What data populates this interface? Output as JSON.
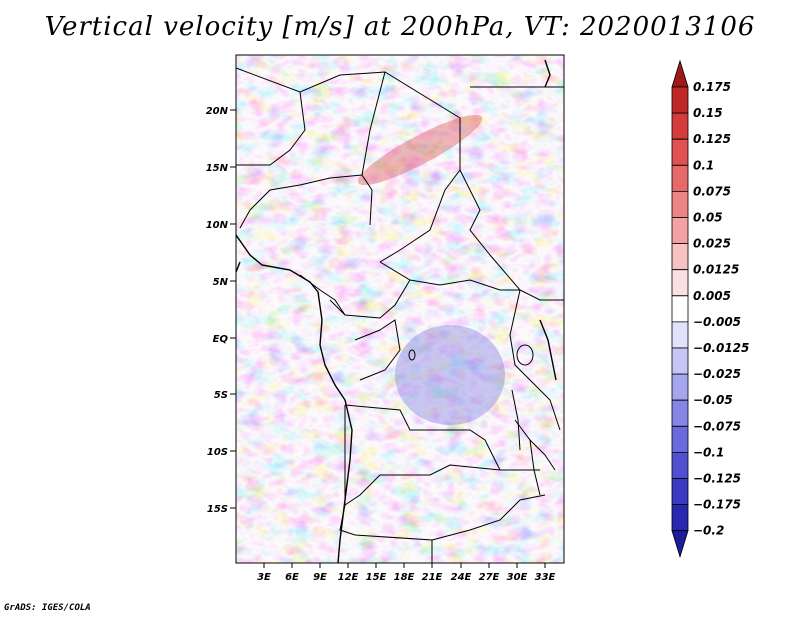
{
  "title": "Vertical velocity [m/s] at 200hPa, VT: 2020013106",
  "credit": "GrADS: IGES/COLA",
  "lat_labels": [
    "20N",
    "15N",
    "10N",
    "5N",
    "EQ",
    "5S",
    "10S",
    "15S"
  ],
  "lon_labels": [
    "3E",
    "6E",
    "9E",
    "12E",
    "15E",
    "18E",
    "21E",
    "24E",
    "27E",
    "30E",
    "33E"
  ],
  "colorbar": {
    "labels": [
      "0.175",
      "0.15",
      "0.125",
      "0.1",
      "0.075",
      "0.05",
      "0.025",
      "0.0125",
      "0.005",
      "-0.005",
      "-0.0125",
      "-0.025",
      "-0.05",
      "-0.075",
      "-0.1",
      "-0.125",
      "-0.175",
      "-0.2"
    ],
    "colors": [
      "#a01818",
      "#c02828",
      "#d43c3c",
      "#e05252",
      "#e66a6a",
      "#ec8484",
      "#f2a2a2",
      "#f7c2c2",
      "#fbe2e2",
      "#ffffff",
      "#e2e2fb",
      "#c6c6f5",
      "#a6a6ee",
      "#8686e6",
      "#6a6adc",
      "#5050d0",
      "#3a3ac2",
      "#2828b0",
      "#1c1c9a"
    ]
  }
}
